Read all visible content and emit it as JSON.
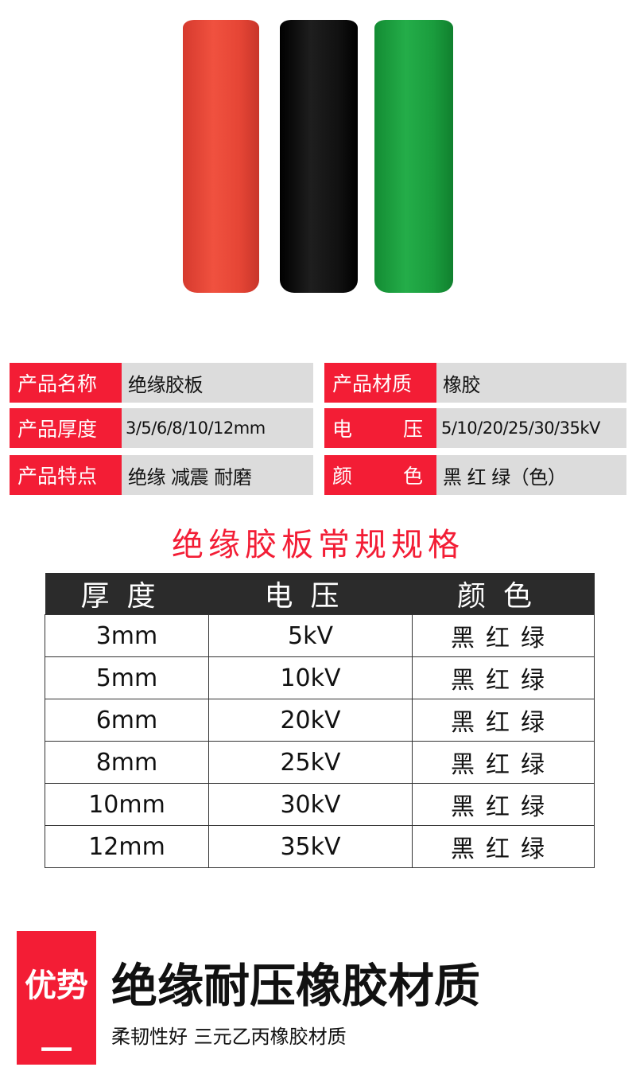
{
  "product_colors": {
    "red": "#e8473a",
    "black": "#0d0d0d",
    "green": "#1aa03e"
  },
  "specs": [
    {
      "label": "产品名称",
      "value": "绝缘胶板"
    },
    {
      "label": "产品材质",
      "value": "橡胶"
    },
    {
      "label": "产品厚度",
      "value": "3/5/6/8/10/12mm"
    },
    {
      "label": "电压",
      "value": "5/10/20/25/30/35kV"
    },
    {
      "label": "产品特点",
      "value": "绝缘 减震 耐磨"
    },
    {
      "label": "颜色",
      "value": "黑 红 绿（色）"
    }
  ],
  "table_title": "绝缘胶板常规规格",
  "table": {
    "headers": [
      "厚度",
      "电压",
      "颜色"
    ],
    "rows": [
      [
        "3mm",
        "5kV",
        "黑红绿"
      ],
      [
        "5mm",
        "10kV",
        "黑红绿"
      ],
      [
        "6mm",
        "20kV",
        "黑红绿"
      ],
      [
        "8mm",
        "25kV",
        "黑红绿"
      ],
      [
        "10mm",
        "30kV",
        "黑红绿"
      ],
      [
        "12mm",
        "35kV",
        "黑红绿"
      ]
    ]
  },
  "advantage": {
    "badge": "优势",
    "badge_num": "一",
    "heading": "绝缘耐压橡胶材质",
    "sub": "柔韧性好 三元乙丙橡胶材质"
  },
  "accent": "#f31d35"
}
